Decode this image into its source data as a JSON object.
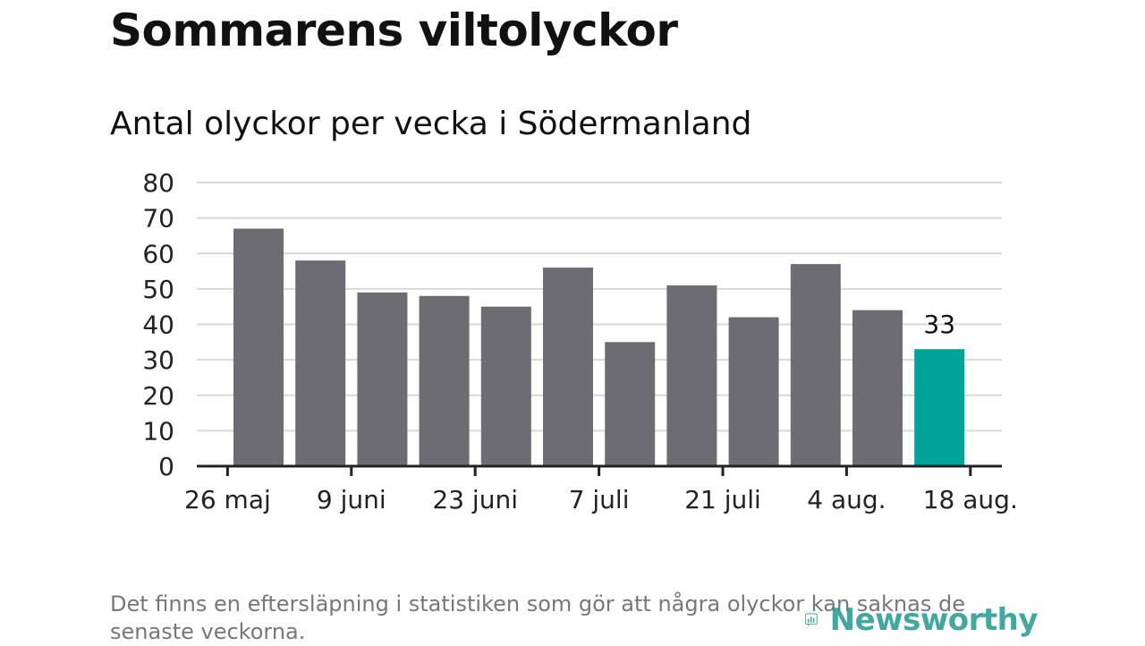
{
  "page": {
    "title": "Sommarens viltolyckor",
    "subtitle": "Antal olyckor per vecka i Södermanland",
    "footnote": "Det finns en eftersläpning i statistiken som gör att några olyckor kan saknas de senaste veckorna.",
    "brand": "Newsworthy"
  },
  "colors": {
    "bar": "#6d6c72",
    "highlight": "#00a398",
    "grid": "#d9d9d9",
    "axis": "#222222",
    "brand": "#1f9a8f"
  },
  "chart_data": {
    "type": "bar",
    "title": "Antal olyckor per vecka i Södermanland",
    "xlabel": "",
    "ylabel": "",
    "ylim": [
      0,
      80
    ],
    "yticks": [
      0,
      10,
      20,
      30,
      40,
      50,
      60,
      70,
      80
    ],
    "grid": true,
    "values": [
      67,
      58,
      49,
      48,
      45,
      56,
      35,
      51,
      42,
      57,
      44,
      33
    ],
    "highlight_index": 11,
    "data_labels": [
      {
        "index": 11,
        "text": "33"
      }
    ],
    "xtick_labels": [
      {
        "label": "26 maj",
        "week_index": -0.5
      },
      {
        "label": "9 juni",
        "week_index": 1.5
      },
      {
        "label": "23 juni",
        "week_index": 3.5
      },
      {
        "label": "7 juli",
        "week_index": 5.5
      },
      {
        "label": "21 juli",
        "week_index": 7.5
      },
      {
        "label": "4 aug.",
        "week_index": 9.5
      },
      {
        "label": "18 aug.",
        "week_index": 11.5
      }
    ]
  }
}
